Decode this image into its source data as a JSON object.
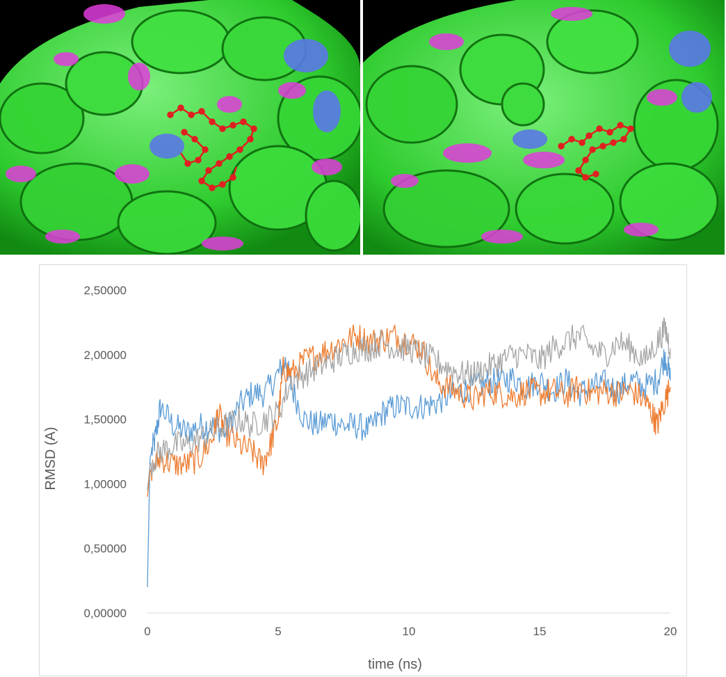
{
  "colors": {
    "surface_green": "#3ddc3d",
    "surface_magenta": "#e03cdc",
    "surface_blue": "#5a78e6",
    "ligand_red": "#e02020",
    "background": "#000000"
  },
  "panels": [
    {
      "name": "protein-surface-with-ligand-start"
    },
    {
      "name": "protein-surface-with-ligand-end"
    }
  ],
  "chart_data": {
    "type": "line",
    "xlabel": "time (ns)",
    "ylabel": "RMSD (A)",
    "xlim": [
      0,
      20
    ],
    "ylim": [
      0,
      2.5
    ],
    "x_ticks": [
      "0",
      "5",
      "10",
      "15",
      "20"
    ],
    "y_ticks": [
      "0,00000",
      "0,50000",
      "1,00000",
      "1,50000",
      "2,00000",
      "2,50000"
    ],
    "grid": false,
    "legend": "none",
    "series": [
      {
        "color": "#5b9bd5",
        "points": [
          [
            0,
            0.2
          ],
          [
            0.1,
            1.2
          ],
          [
            0.3,
            1.35
          ],
          [
            0.5,
            1.6
          ],
          [
            1,
            1.45
          ],
          [
            1.5,
            1.4
          ],
          [
            2,
            1.45
          ],
          [
            2.5,
            1.45
          ],
          [
            3,
            1.4
          ],
          [
            3.5,
            1.6
          ],
          [
            4,
            1.7
          ],
          [
            4.5,
            1.7
          ],
          [
            5,
            1.85
          ],
          [
            5.3,
            1.95
          ],
          [
            5.5,
            1.75
          ],
          [
            6,
            1.5
          ],
          [
            6.5,
            1.45
          ],
          [
            7,
            1.5
          ],
          [
            7.5,
            1.45
          ],
          [
            8,
            1.45
          ],
          [
            8.5,
            1.42
          ],
          [
            9,
            1.55
          ],
          [
            9.5,
            1.6
          ],
          [
            10,
            1.6
          ],
          [
            10.5,
            1.6
          ],
          [
            11,
            1.62
          ],
          [
            11.5,
            1.68
          ],
          [
            12,
            1.72
          ],
          [
            12.5,
            1.75
          ],
          [
            13,
            1.78
          ],
          [
            13.5,
            1.8
          ],
          [
            14,
            1.82
          ],
          [
            14.5,
            1.75
          ],
          [
            15,
            1.8
          ],
          [
            15.5,
            1.72
          ],
          [
            16,
            1.8
          ],
          [
            16.5,
            1.7
          ],
          [
            17,
            1.75
          ],
          [
            17.5,
            1.78
          ],
          [
            18,
            1.72
          ],
          [
            18.5,
            1.8
          ],
          [
            19,
            1.75
          ],
          [
            19.5,
            1.8
          ],
          [
            19.8,
            2.0
          ],
          [
            20,
            1.8
          ]
        ]
      },
      {
        "color": "#ed7d31",
        "points": [
          [
            0,
            0.9
          ],
          [
            0.1,
            1.1
          ],
          [
            0.5,
            1.2
          ],
          [
            1,
            1.15
          ],
          [
            1.5,
            1.15
          ],
          [
            2,
            1.2
          ],
          [
            2.5,
            1.35
          ],
          [
            2.7,
            1.55
          ],
          [
            3,
            1.4
          ],
          [
            3.5,
            1.3
          ],
          [
            4,
            1.25
          ],
          [
            4.4,
            1.15
          ],
          [
            4.7,
            1.3
          ],
          [
            5,
            1.5
          ],
          [
            5.2,
            1.9
          ],
          [
            5.5,
            1.85
          ],
          [
            6,
            1.95
          ],
          [
            6.5,
            2.0
          ],
          [
            7,
            2.05
          ],
          [
            7.5,
            2.1
          ],
          [
            8,
            2.15
          ],
          [
            8.5,
            2.1
          ],
          [
            9,
            2.12
          ],
          [
            9.5,
            2.15
          ],
          [
            10,
            2.1
          ],
          [
            10.5,
            2.05
          ],
          [
            11,
            1.8
          ],
          [
            11.5,
            1.75
          ],
          [
            12,
            1.7
          ],
          [
            12.5,
            1.65
          ],
          [
            13,
            1.72
          ],
          [
            13.5,
            1.7
          ],
          [
            14,
            1.68
          ],
          [
            14.5,
            1.72
          ],
          [
            15,
            1.7
          ],
          [
            15.5,
            1.72
          ],
          [
            16,
            1.68
          ],
          [
            16.5,
            1.75
          ],
          [
            17,
            1.7
          ],
          [
            17.5,
            1.72
          ],
          [
            18,
            1.7
          ],
          [
            18.5,
            1.72
          ],
          [
            19,
            1.65
          ],
          [
            19.3,
            1.55
          ],
          [
            19.5,
            1.45
          ],
          [
            19.7,
            1.6
          ],
          [
            20,
            1.75
          ]
        ]
      },
      {
        "color": "#a5a5a5",
        "points": [
          [
            0,
            0.95
          ],
          [
            0.1,
            1.15
          ],
          [
            0.5,
            1.25
          ],
          [
            1,
            1.3
          ],
          [
            1.5,
            1.3
          ],
          [
            2,
            1.35
          ],
          [
            2.5,
            1.4
          ],
          [
            3,
            1.45
          ],
          [
            3.5,
            1.5
          ],
          [
            4,
            1.45
          ],
          [
            4.5,
            1.5
          ],
          [
            5,
            1.55
          ],
          [
            5.5,
            1.8
          ],
          [
            6,
            1.85
          ],
          [
            6.5,
            1.9
          ],
          [
            7,
            1.95
          ],
          [
            7.5,
            2.0
          ],
          [
            8,
            2.05
          ],
          [
            8.5,
            2.05
          ],
          [
            9,
            2.1
          ],
          [
            9.5,
            2.05
          ],
          [
            10,
            2.05
          ],
          [
            10.5,
            2.0
          ],
          [
            11,
            1.95
          ],
          [
            11.5,
            1.9
          ],
          [
            12,
            1.85
          ],
          [
            12.5,
            1.85
          ],
          [
            13,
            1.9
          ],
          [
            13.5,
            1.95
          ],
          [
            14,
            2.0
          ],
          [
            14.5,
            2.0
          ],
          [
            15,
            1.95
          ],
          [
            15.5,
            2.05
          ],
          [
            16,
            2.1
          ],
          [
            16.5,
            2.15
          ],
          [
            17,
            2.05
          ],
          [
            17.5,
            2.0
          ],
          [
            18,
            2.1
          ],
          [
            18.5,
            2.05
          ],
          [
            19,
            1.95
          ],
          [
            19.5,
            2.1
          ],
          [
            19.8,
            2.2
          ],
          [
            20,
            2.05
          ]
        ]
      }
    ]
  }
}
